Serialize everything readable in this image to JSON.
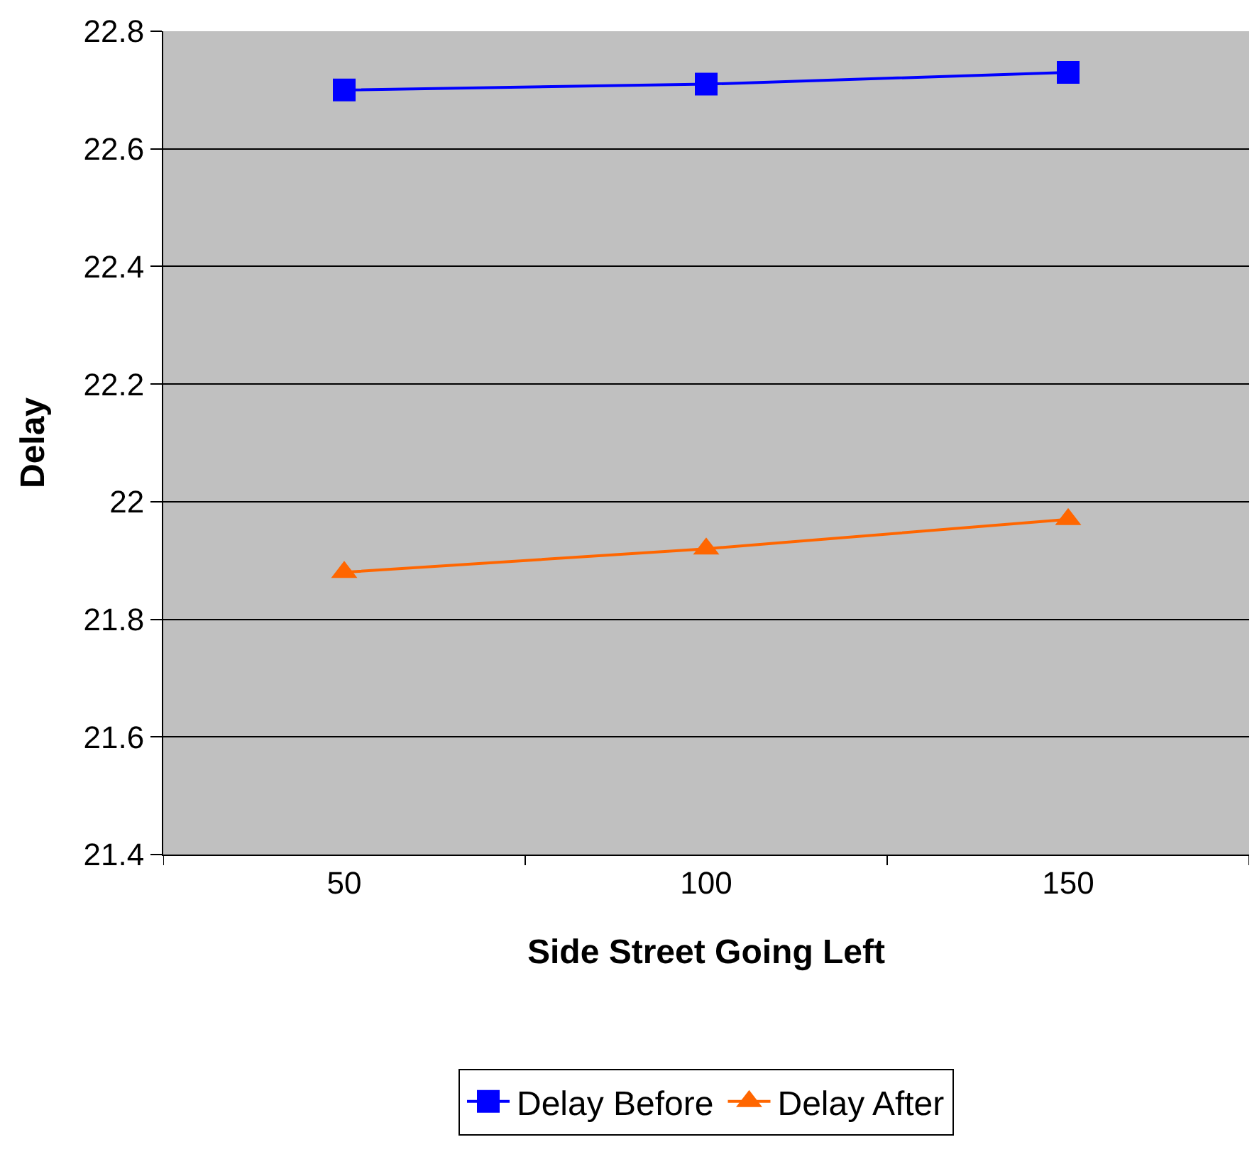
{
  "chart_data": {
    "type": "line",
    "xlabel": "Side Street Going Left",
    "ylabel": "Delay",
    "categories": [
      "50",
      "100",
      "150"
    ],
    "series": [
      {
        "name": "Delay Before",
        "color": "#0000ff",
        "marker": "square",
        "values": [
          22.7,
          22.71,
          22.73
        ]
      },
      {
        "name": "Delay After",
        "color": "#ff6600",
        "marker": "triangle",
        "values": [
          21.88,
          21.92,
          21.97
        ]
      }
    ],
    "ylim": [
      21.4,
      22.8
    ],
    "yticks": [
      21.4,
      21.6,
      21.8,
      {
        "value": 22,
        "label": "22"
      },
      22.2,
      22.4,
      22.6,
      22.8
    ],
    "grid": "y",
    "legend": "bottom"
  }
}
